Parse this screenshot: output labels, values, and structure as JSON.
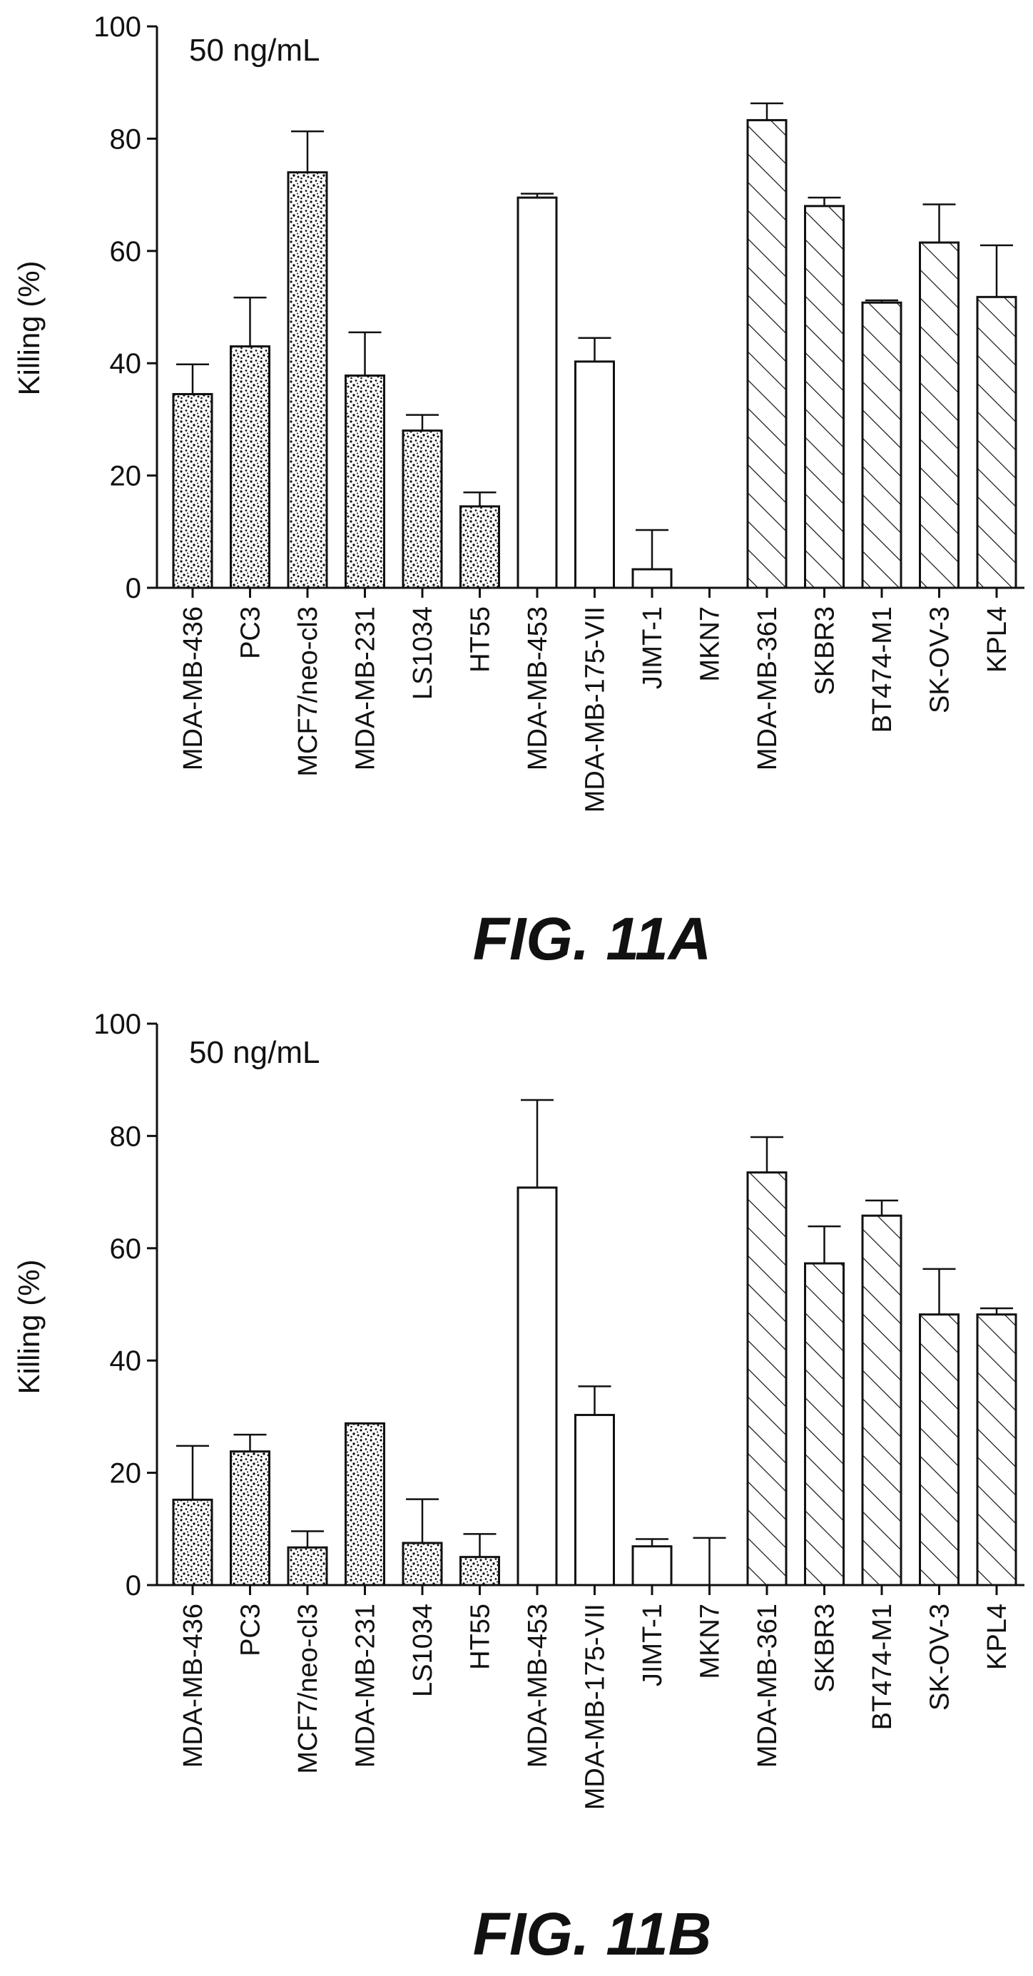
{
  "colors": {
    "ink": "#111111",
    "background": "#ffffff"
  },
  "chart_data": [
    {
      "type": "bar",
      "caption": "FIG. 11A",
      "annotation": "50 ng/mL",
      "ylabel": "Killing (%)",
      "xlabel": "",
      "ylim": [
        0,
        100
      ],
      "yticks": [
        0,
        20,
        40,
        60,
        80,
        100
      ],
      "grid": false,
      "categories": [
        "MDA-MB-436",
        "PC3",
        "MCF7/neo-cl3",
        "MDA-MB-231",
        "LS1034",
        "HT55",
        "MDA-MB-453",
        "MDA-MB-175-VII",
        "JIMT-1",
        "MKN7",
        "MDA-MB-361",
        "SKBR3",
        "BT474-M1",
        "SK-OV-3",
        "KPL4"
      ],
      "fill_patterns": [
        "stipple",
        "stipple",
        "stipple",
        "stipple",
        "stipple",
        "stipple",
        "open",
        "open",
        "open",
        "open",
        "hatch",
        "hatch",
        "hatch",
        "hatch",
        "hatch"
      ],
      "values": [
        34.5,
        43,
        74,
        37.8,
        28,
        14.5,
        69.5,
        40.3,
        3.3,
        0,
        83.3,
        68,
        50.8,
        61.5,
        51.8
      ],
      "error_upper": [
        39.8,
        51.7,
        81.3,
        45.5,
        30.8,
        17,
        70.2,
        44.5,
        10.3,
        0,
        86.3,
        69.5,
        51.2,
        68.3,
        61
      ],
      "error_lower": []
    },
    {
      "type": "bar",
      "caption": "FIG. 11B",
      "annotation": "50 ng/mL",
      "ylabel": "Killing (%)",
      "xlabel": "",
      "ylim": [
        0,
        100
      ],
      "yticks": [
        0,
        20,
        40,
        60,
        80,
        100
      ],
      "grid": false,
      "categories": [
        "MDA-MB-436",
        "PC3",
        "MCF7/neo-cl3",
        "MDA-MB-231",
        "LS1034",
        "HT55",
        "MDA-MB-453",
        "MDA-MB-175-VII",
        "JIMT-1",
        "MKN7",
        "MDA-MB-361",
        "SKBR3",
        "BT474-M1",
        "SK-OV-3",
        "KPL4"
      ],
      "fill_patterns": [
        "stipple",
        "stipple",
        "stipple",
        "stipple",
        "stipple",
        "stipple",
        "open",
        "open",
        "open",
        "open",
        "hatch",
        "hatch",
        "hatch",
        "hatch",
        "hatch"
      ],
      "values": [
        15.2,
        23.8,
        6.7,
        28.8,
        7.5,
        5,
        70.8,
        30.3,
        6.9,
        0,
        73.5,
        57.3,
        65.8,
        48.2,
        48.2
      ],
      "error_upper": [
        24.8,
        26.8,
        9.6,
        28.8,
        15.3,
        9.1,
        86.4,
        35.4,
        8.2,
        8.4,
        79.8,
        63.9,
        68.5,
        56.3,
        49.3
      ]
    }
  ]
}
